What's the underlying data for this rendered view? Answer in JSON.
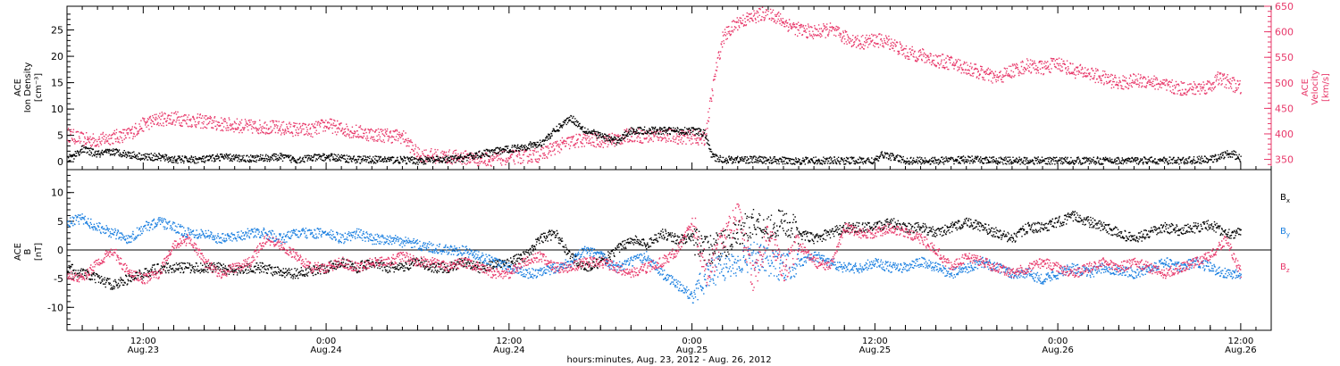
{
  "figure": {
    "x_title": "hours:minutes, Aug. 23, 2012 - Aug. 26, 2012",
    "x_ticks": [
      {
        "t": 12,
        "time": "12:00",
        "date": "Aug.23"
      },
      {
        "t": 24,
        "time": "0:00",
        "date": "Aug.24"
      },
      {
        "t": 36,
        "time": "12:00",
        "date": "Aug.24"
      },
      {
        "t": 48,
        "time": "0:00",
        "date": "Aug.25"
      },
      {
        "t": 60,
        "time": "12:00",
        "date": "Aug.25"
      },
      {
        "t": 72,
        "time": "0:00",
        "date": "Aug.26"
      },
      {
        "t": 84,
        "time": "12:00",
        "date": "Aug.26"
      }
    ],
    "colors": {
      "black": "#000000",
      "pink": "#e8386a",
      "blue": "#1a7fe0"
    }
  },
  "chart_data": [
    {
      "type": "scatter",
      "panel": "top",
      "xlim": [
        7,
        86
      ],
      "ylabel": [
        "ACE",
        "Ion Density",
        "[cm⁻³]"
      ],
      "ylim": [
        -1.5,
        29.5
      ],
      "yticks": [
        0,
        5,
        10,
        15,
        20,
        25
      ],
      "ylabel_right": [
        "ACE",
        "Velocity",
        "[km/s]"
      ],
      "ylim_right": [
        330,
        650
      ],
      "yticks_right": [
        350,
        400,
        450,
        500,
        550,
        600,
        650
      ],
      "series": [
        {
          "axis": "left",
          "color": "#000000",
          "x": [
            7,
            8,
            9,
            10,
            11,
            12,
            13,
            14,
            15,
            16,
            17,
            18,
            19,
            20,
            21,
            22,
            23,
            24,
            25,
            26,
            27,
            28,
            29,
            30,
            31,
            32,
            33,
            34,
            35,
            36,
            37,
            38,
            39,
            40,
            41,
            42,
            43,
            44,
            45,
            46,
            47,
            48,
            48.8,
            49.3,
            50,
            52,
            54,
            56,
            58,
            60,
            60.5,
            62,
            64,
            66,
            68,
            70,
            72,
            74,
            76,
            78,
            80,
            82,
            83,
            83.5,
            84
          ],
          "y": [
            0.5,
            2.5,
            1.5,
            2,
            1.5,
            1,
            1,
            0.5,
            0.5,
            0.5,
            1,
            0.8,
            0.7,
            0.8,
            1,
            0.5,
            0.8,
            1,
            0.8,
            0.5,
            0.5,
            0.5,
            0.4,
            0.3,
            0.4,
            0.5,
            0.8,
            1.5,
            2,
            2.5,
            3,
            3.5,
            6,
            8.5,
            6,
            5,
            4,
            6,
            6,
            6,
            6,
            6,
            5.5,
            1,
            0.5,
            0.5,
            0.3,
            0.3,
            0.3,
            0.3,
            1.5,
            0.3,
            0.3,
            0.5,
            0.3,
            0.3,
            0.3,
            0.3,
            0.3,
            0.3,
            0.3,
            0.5,
            1.5,
            1.5,
            0.5
          ]
        },
        {
          "axis": "right",
          "color": "#e8386a",
          "x": [
            7,
            8,
            9,
            10,
            11,
            12,
            13,
            14,
            15,
            16,
            17,
            18,
            19,
            20,
            21,
            22,
            23,
            24,
            25,
            26,
            27,
            28,
            29,
            30,
            31,
            32,
            33,
            34,
            35,
            36,
            37,
            38,
            39,
            40,
            41,
            42,
            43,
            44,
            45,
            46,
            47,
            48,
            48.8,
            49.5,
            50,
            51,
            52,
            53,
            54,
            55,
            56,
            57,
            58,
            59,
            60,
            61,
            62,
            63,
            64,
            65,
            66,
            67,
            68,
            69,
            70,
            71,
            72,
            73,
            74,
            75,
            76,
            77,
            78,
            79,
            80,
            81,
            82,
            82.5,
            83,
            84
          ],
          "y": [
            400,
            390,
            388,
            395,
            400,
            420,
            430,
            432,
            428,
            425,
            420,
            418,
            415,
            415,
            412,
            410,
            408,
            420,
            410,
            405,
            400,
            398,
            396,
            360,
            358,
            356,
            355,
            352,
            352,
            355,
            357,
            360,
            375,
            385,
            390,
            388,
            390,
            400,
            395,
            400,
            395,
            395,
            390,
            520,
            590,
            620,
            630,
            640,
            620,
            605,
            600,
            605,
            590,
            580,
            585,
            580,
            560,
            555,
            545,
            540,
            530,
            520,
            510,
            525,
            535,
            530,
            540,
            525,
            520,
            510,
            500,
            505,
            505,
            495,
            490,
            490,
            495,
            510,
            505,
            490
          ]
        }
      ]
    },
    {
      "type": "scatter",
      "panel": "bottom",
      "xlim": [
        7,
        86
      ],
      "ylabel": [
        "ACE",
        "B",
        "[nT]"
      ],
      "ylim": [
        -14,
        14
      ],
      "yticks": [
        -10,
        -5,
        0,
        5,
        10
      ],
      "series": [
        {
          "name": "Bx",
          "color": "#000000",
          "x": [
            7,
            8,
            9,
            10,
            11,
            12,
            13,
            14,
            15,
            16,
            17,
            18,
            19,
            20,
            21,
            22,
            23,
            24,
            25,
            26,
            27,
            28,
            29,
            30,
            31,
            32,
            33,
            34,
            35,
            36,
            37,
            38,
            39,
            40,
            41,
            42,
            43,
            44,
            45,
            46,
            47,
            48,
            49,
            50,
            51,
            52,
            53,
            54,
            55,
            56,
            57,
            58,
            59,
            60,
            61,
            62,
            63,
            64,
            65,
            66,
            67,
            68,
            69,
            70,
            71,
            72,
            73,
            74,
            75,
            76,
            77,
            78,
            79,
            80,
            81,
            82,
            83,
            84
          ],
          "y": [
            -3,
            -4,
            -5,
            -6,
            -5,
            -4,
            -3,
            -3,
            -3,
            -3,
            -3,
            -3.5,
            -3,
            -3,
            -4,
            -4,
            -3.5,
            -3,
            -2,
            -3,
            -2,
            -3,
            -3,
            -2,
            -3,
            -3,
            -2,
            -3,
            -2.5,
            -2,
            -1,
            2,
            3,
            -1,
            -3,
            -2,
            0,
            2,
            1,
            3,
            2,
            2,
            0,
            1,
            3,
            5,
            4,
            5,
            3,
            2,
            3,
            4,
            4,
            4,
            5,
            4,
            4,
            3,
            4,
            5,
            4,
            3,
            2,
            4,
            4,
            5,
            6,
            5,
            4,
            3,
            2,
            3,
            4,
            3.5,
            4,
            4.5,
            3,
            3
          ]
        },
        {
          "name": "By",
          "color": "#1a7fe0",
          "x": [
            7,
            8,
            9,
            10,
            11,
            12,
            13,
            14,
            15,
            16,
            17,
            18,
            19,
            20,
            21,
            22,
            23,
            24,
            25,
            26,
            27,
            28,
            29,
            30,
            31,
            32,
            33,
            34,
            35,
            36,
            37,
            38,
            39,
            40,
            41,
            42,
            43,
            44,
            45,
            46,
            47,
            48,
            49,
            50,
            51,
            52,
            53,
            54,
            55,
            56,
            57,
            58,
            59,
            60,
            61,
            62,
            63,
            64,
            65,
            66,
            67,
            68,
            69,
            70,
            71,
            72,
            73,
            74,
            75,
            76,
            77,
            78,
            79,
            80,
            81,
            82,
            83,
            84
          ],
          "y": [
            5,
            5.5,
            4,
            3,
            2,
            4,
            5,
            4,
            3,
            3,
            2,
            2.5,
            3,
            3,
            2,
            3,
            3,
            3,
            2,
            3,
            2,
            2,
            1.5,
            1,
            0.5,
            0,
            0,
            -1,
            -2,
            -3,
            -4,
            -4,
            -3,
            -2,
            0,
            -1,
            -3,
            -2,
            -1,
            -4,
            -6,
            -8,
            -4,
            -3,
            -2,
            -1,
            -2,
            -3,
            -2,
            -1,
            -2,
            -3,
            -3,
            -2,
            -3,
            -3,
            -2,
            -3,
            -4,
            -3,
            -2,
            -3,
            -4,
            -4,
            -5,
            -4,
            -3,
            -4,
            -3,
            -3.5,
            -4,
            -3,
            -2,
            -3,
            -2,
            -3,
            -4,
            -4
          ]
        },
        {
          "name": "Bz",
          "color": "#e8386a",
          "x": [
            7,
            8,
            9,
            10,
            11,
            12,
            13,
            14,
            15,
            16,
            17,
            18,
            19,
            20,
            21,
            22,
            23,
            24,
            25,
            26,
            27,
            28,
            29,
            30,
            31,
            32,
            33,
            34,
            35,
            36,
            37,
            38,
            39,
            40,
            41,
            42,
            43,
            44,
            45,
            46,
            47,
            48,
            49,
            50,
            51,
            52,
            53,
            54,
            55,
            56,
            57,
            58,
            59,
            60,
            61,
            62,
            63,
            64,
            65,
            66,
            67,
            68,
            69,
            70,
            71,
            72,
            73,
            74,
            75,
            76,
            77,
            78,
            79,
            80,
            81,
            82,
            83,
            84
          ],
          "y": [
            -4,
            -5,
            -2,
            0,
            -4,
            -5,
            -4,
            1,
            2,
            -2,
            -4,
            -3,
            -2,
            2,
            1,
            -1,
            -3,
            -3,
            -2,
            -3,
            -2,
            -2,
            -1,
            -2,
            -2,
            -3,
            -2,
            -3,
            -4,
            -4,
            -2,
            -1,
            -3,
            -3,
            -2,
            -2,
            -3,
            -4,
            -3,
            -2,
            0,
            5,
            -4,
            2,
            6,
            -5,
            3,
            -3,
            1,
            -2,
            -3,
            4,
            3,
            3,
            4,
            3,
            2,
            0,
            -3,
            -1,
            -2,
            -3,
            -4,
            -3,
            -2,
            -3,
            -4,
            -3,
            -2,
            -3,
            -2,
            -3,
            -4,
            -3,
            -2,
            -1,
            2,
            -4
          ]
        }
      ]
    }
  ]
}
